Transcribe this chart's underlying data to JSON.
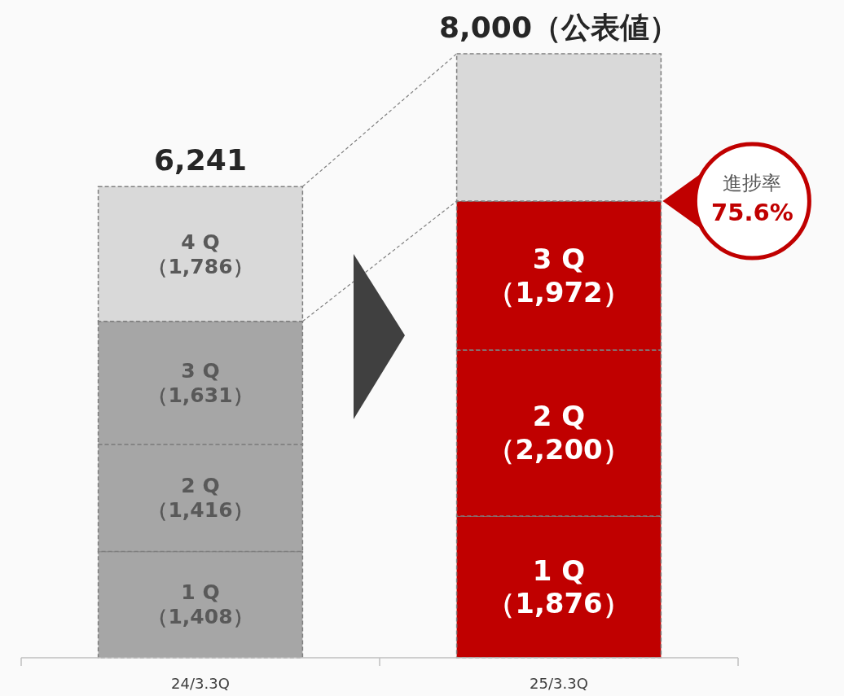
{
  "chart_data": {
    "type": "bar",
    "stacked": true,
    "categories": [
      "24/3.3Q",
      "25/3.3Q"
    ],
    "series": [
      {
        "colors": [
          "#a6a6a6",
          "#c00000"
        ],
        "values": [
          1408,
          1876
        ],
        "value_labels": [
          "1 Q\n（1,408）",
          "1 Q\n（1,876）"
        ]
      },
      {
        "colors": [
          "#a6a6a6",
          "#c00000"
        ],
        "values": [
          1416,
          2200
        ],
        "value_labels": [
          "2 Q\n（1,416）",
          "2 Q\n（2,200）"
        ]
      },
      {
        "colors": [
          "#a6a6a6",
          "#c00000"
        ],
        "values": [
          1631,
          1972
        ],
        "value_labels": [
          "3 Q\n（1,631）",
          "3 Q\n（1,972）"
        ]
      },
      {
        "colors": [
          "#d9d9d9",
          "#d9d9d9"
        ],
        "values": [
          1786,
          1952
        ],
        "value_labels": [
          "4 Q\n（1,786）",
          null
        ]
      }
    ],
    "totals": [
      "6,241",
      "8,000（公表値）"
    ],
    "annotations": [
      "進捗率 75.6%"
    ]
  }
}
